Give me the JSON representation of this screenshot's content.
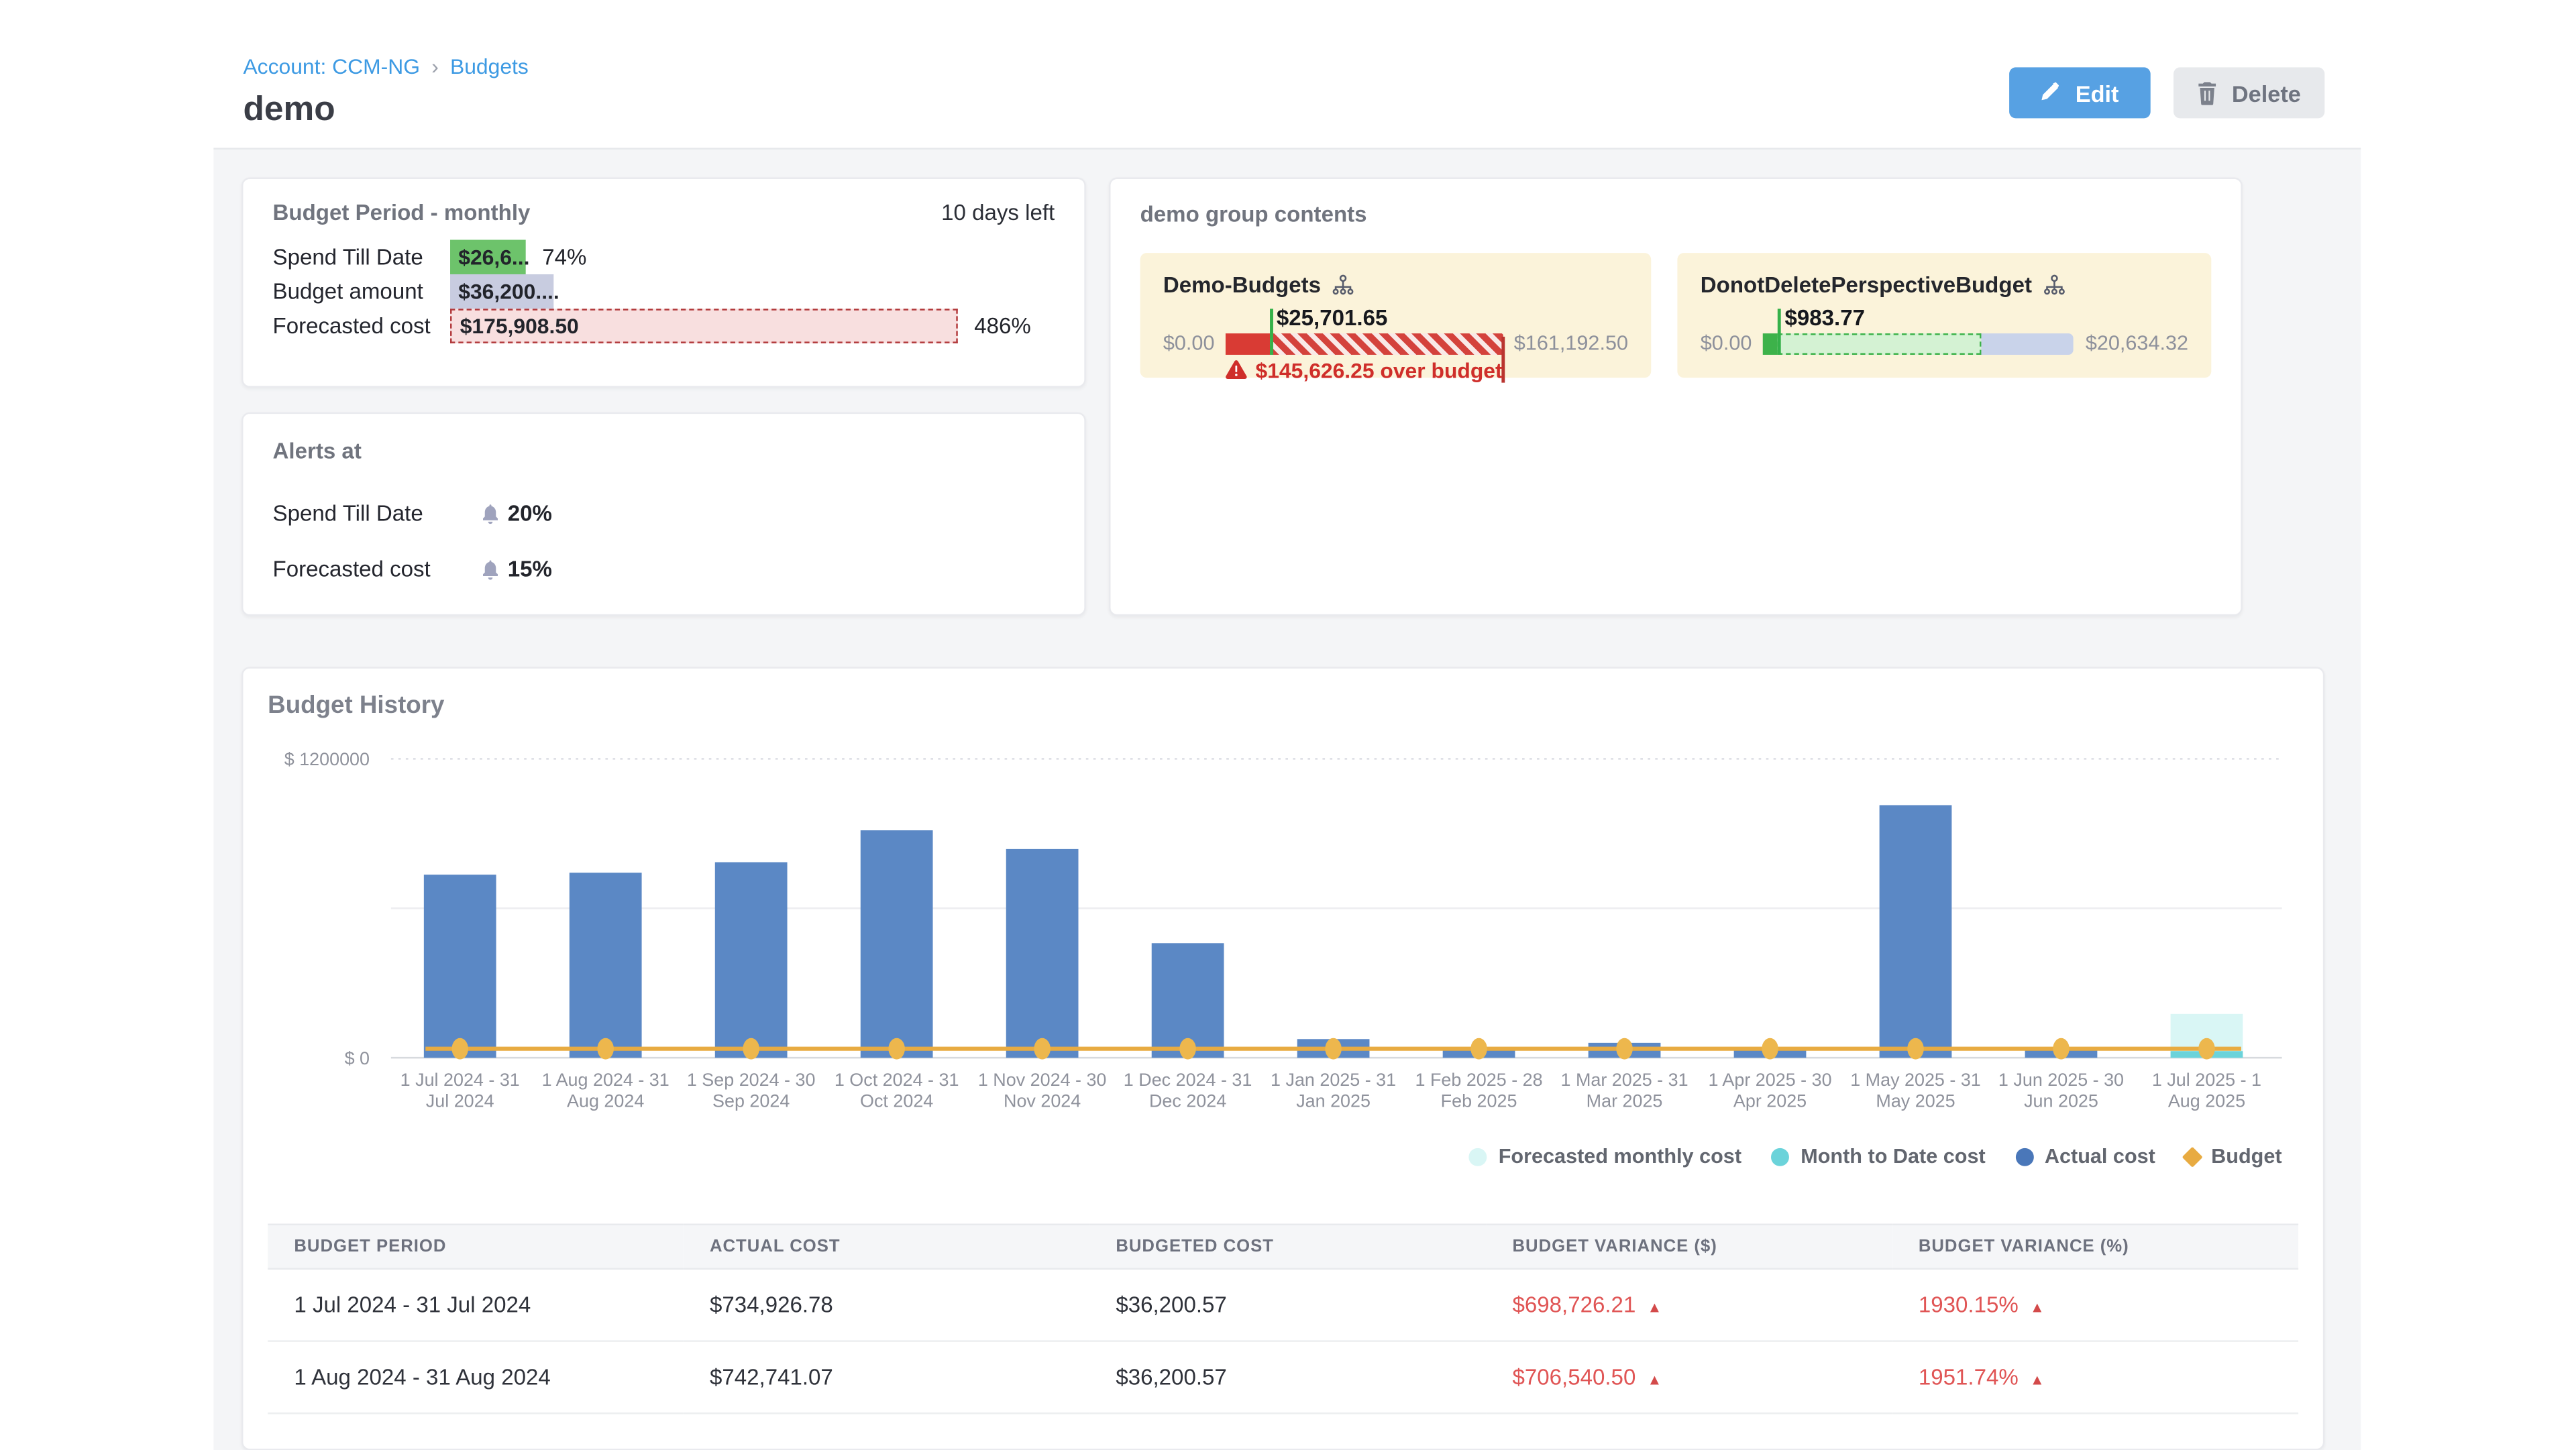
{
  "breadcrumb": {
    "account_label": "Account: CCM-NG",
    "separator": "›",
    "current": "Budgets"
  },
  "page": {
    "title": "demo"
  },
  "actions": {
    "edit_label": "Edit",
    "delete_label": "Delete"
  },
  "budget_period_card": {
    "title": "Budget Period - monthly",
    "days_left": "10 days left",
    "rows": [
      {
        "label": "Spend Till Date",
        "value": "$26,6...",
        "percent": "74%",
        "bar_color": "#6dc36b",
        "width_pct": 14.9,
        "dashed": false
      },
      {
        "label": "Budget amount",
        "value": "$36,200....",
        "percent": "",
        "bar_color": "#c8cce0",
        "width_pct": 20.4,
        "dashed": false
      },
      {
        "label": "Forecasted cost",
        "value": "$175,908.50",
        "percent": "486%",
        "bar_color": "#f8dfdf",
        "width_pct": 100,
        "dashed": true
      }
    ]
  },
  "alerts_card": {
    "title": "Alerts at",
    "rows": [
      {
        "label": "Spend Till Date",
        "value": "20%"
      },
      {
        "label": "Forecasted cost",
        "value": "15%"
      }
    ]
  },
  "group_card": {
    "title": "demo group contents",
    "tiles": [
      {
        "name": "Demo-Budgets",
        "current_value": "$25,701.65",
        "range_min": "$0.00",
        "range_max": "$161,192.50",
        "marker_pct": 15.9,
        "over_budget_note": "$145,626.25 over budget",
        "style": "over-budget",
        "colors": {
          "spent": "#d93b34",
          "overage_stripe": "#d4423c",
          "overage_bg": "#f9e9e7",
          "marker": "#35b14a"
        }
      },
      {
        "name": "DonotDeletePerspectiveBudget",
        "current_value": "$983.77",
        "range_min": "$0.00",
        "range_max": "$20,634.32",
        "marker_pct": 4.8,
        "forecast_pct": 70,
        "style": "under-budget",
        "colors": {
          "spent": "#3db24a",
          "forecast_fill": "#d4f2d3",
          "forecast_border": "#3db24a",
          "remaining": "#c9d3ea",
          "marker": "#35b14a"
        }
      }
    ]
  },
  "history_card": {
    "title": "Budget History",
    "legend": [
      {
        "label": "Forecasted monthly cost",
        "color": "#d9f6f5",
        "shape": "circle"
      },
      {
        "label": "Month to Date cost",
        "color": "#6bd3da",
        "shape": "circle"
      },
      {
        "label": "Actual cost",
        "color": "#4a77b9",
        "shape": "circle"
      },
      {
        "label": "Budget",
        "color": "#e8ab41",
        "shape": "diamond"
      }
    ]
  },
  "chart_data": {
    "type": "bar",
    "title": "Budget History",
    "xlabel": "",
    "ylabel": "$",
    "ylim": [
      0,
      1200000
    ],
    "grid": true,
    "legend_position": "bottom-right",
    "ytick_labels": [
      {
        "value": 1200000,
        "label": "$ 1200000"
      },
      {
        "value": 0,
        "label": "$ 0"
      }
    ],
    "categories": [
      [
        "1 Jul 2024 - 31",
        "Jul 2024"
      ],
      [
        "1 Aug 2024 - 31",
        "Aug 2024"
      ],
      [
        "1 Sep 2024 - 30",
        "Sep 2024"
      ],
      [
        "1 Oct 2024 - 31",
        "Oct 2024"
      ],
      [
        "1 Nov 2024 - 30",
        "Nov 2024"
      ],
      [
        "1 Dec 2024 - 31",
        "Dec 2024"
      ],
      [
        "1 Jan 2025 - 31",
        "Jan 2025"
      ],
      [
        "1 Feb 2025 - 28",
        "Feb 2025"
      ],
      [
        "1 Mar 2025 - 31",
        "Mar 2025"
      ],
      [
        "1 Apr 2025 - 30",
        "Apr 2025"
      ],
      [
        "1 May 2025 - 31",
        "May 2025"
      ],
      [
        "1 Jun 2025 - 30",
        "Jun 2025"
      ],
      [
        "1 Jul 2025 - 1",
        "Aug 2025"
      ]
    ],
    "series": [
      {
        "name": "Actual cost",
        "type": "column",
        "color": "#5b88c5",
        "values": [
          734926.78,
          742741.07,
          785000,
          913000,
          838000,
          460000,
          75000,
          33000,
          60000,
          33000,
          1014000,
          33000,
          null
        ]
      },
      {
        "name": "Forecasted monthly cost",
        "type": "column",
        "color": "#d9f6f5",
        "values": [
          null,
          null,
          null,
          null,
          null,
          null,
          null,
          null,
          null,
          null,
          null,
          null,
          175908.5
        ]
      },
      {
        "name": "Month to Date cost",
        "type": "column",
        "color": "#6bd3da",
        "values": [
          null,
          null,
          null,
          null,
          null,
          null,
          null,
          null,
          null,
          null,
          null,
          null,
          26600
        ]
      },
      {
        "name": "Budget",
        "type": "line",
        "color": "#e8ab41",
        "values": [
          36200.57,
          36200.57,
          36200.57,
          36200.57,
          36200.57,
          36200.57,
          36200.57,
          36200.57,
          36200.57,
          36200.57,
          36200.57,
          36200.57,
          36200.57
        ]
      }
    ]
  },
  "table": {
    "headers": [
      "BUDGET PERIOD",
      "ACTUAL COST",
      "BUDGETED COST",
      "BUDGET VARIANCE ($)",
      "BUDGET VARIANCE (%)"
    ],
    "rows": [
      {
        "period": "1 Jul 2024 - 31 Jul 2024",
        "actual": "$734,926.78",
        "budgeted": "$36,200.57",
        "variance_usd": "$698,726.21",
        "variance_pct": "1930.15%",
        "direction": "up"
      },
      {
        "period": "1 Aug 2024 - 31 Aug 2024",
        "actual": "$742,741.07",
        "budgeted": "$36,200.57",
        "variance_usd": "$706,540.50",
        "variance_pct": "1951.74%",
        "direction": "up"
      }
    ]
  }
}
